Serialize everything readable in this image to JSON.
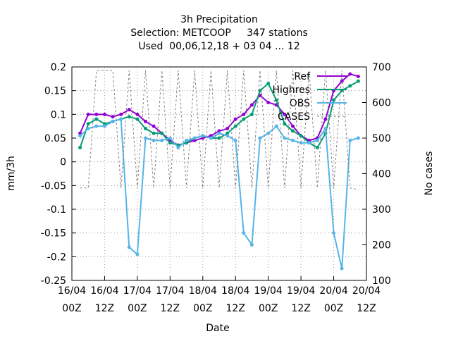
{
  "chart_data": {
    "type": "line",
    "title": [
      "3h Precipitation",
      "Selection: METCOOP     347 stations",
      "Used  00,06,12,18 + 03 04 ... 12"
    ],
    "xlabel": "Date",
    "ylabel": "mm/3h",
    "y2label": "No cases",
    "x": [
      3,
      6,
      9,
      12,
      15,
      18,
      21,
      24,
      27,
      30,
      33,
      36,
      39,
      42,
      45,
      48,
      51,
      54,
      57,
      60,
      63,
      66,
      69,
      72,
      75,
      78,
      81,
      84,
      87,
      90,
      93,
      96,
      99,
      102,
      105
    ],
    "xlim": [
      0,
      108
    ],
    "xticks": [
      {
        "value": 0,
        "label": [
          "16/04",
          "00Z"
        ]
      },
      {
        "value": 12,
        "label": [
          "16/04",
          "12Z"
        ]
      },
      {
        "value": 24,
        "label": [
          "17/04",
          "00Z"
        ]
      },
      {
        "value": 36,
        "label": [
          "17/04",
          "12Z"
        ]
      },
      {
        "value": 48,
        "label": [
          "18/04",
          "00Z"
        ]
      },
      {
        "value": 60,
        "label": [
          "18/04",
          "12Z"
        ]
      },
      {
        "value": 72,
        "label": [
          "19/04",
          "00Z"
        ]
      },
      {
        "value": 84,
        "label": [
          "19/04",
          "12Z"
        ]
      },
      {
        "value": 96,
        "label": [
          "20/04",
          "00Z"
        ]
      },
      {
        "value": 108,
        "label": [
          "20/04",
          "12Z"
        ]
      }
    ],
    "ylim": [
      -0.25,
      0.2
    ],
    "yticks": [
      -0.25,
      -0.2,
      -0.15,
      -0.1,
      -0.05,
      0,
      0.05,
      0.1,
      0.15,
      0.2
    ],
    "y2lim": [
      100,
      700
    ],
    "y2ticks": [
      100,
      200,
      300,
      400,
      500,
      600,
      700
    ],
    "grid": true,
    "legend": "top right",
    "series": [
      {
        "name": "Ref",
        "color": "#9400d3",
        "values": [
          0.06,
          0.1,
          0.1,
          0.1,
          0.095,
          0.1,
          0.11,
          0.1,
          0.085,
          0.075,
          0.06,
          0.045,
          0.035,
          0.04,
          0.045,
          0.05,
          0.055,
          0.065,
          0.07,
          0.09,
          0.1,
          0.12,
          0.14,
          0.125,
          0.12,
          0.1,
          0.075,
          0.055,
          0.045,
          0.05,
          0.09,
          0.15,
          0.17,
          0.185,
          0.18
        ]
      },
      {
        "name": "Highres",
        "color": "#009e73",
        "values": [
          0.03,
          0.08,
          0.09,
          0.08,
          0.085,
          0.09,
          0.095,
          0.09,
          0.07,
          0.06,
          0.06,
          0.04,
          0.035,
          0.04,
          0.05,
          0.055,
          0.05,
          0.05,
          0.06,
          0.075,
          0.09,
          0.1,
          0.15,
          0.165,
          0.13,
          0.08,
          0.065,
          0.055,
          0.04,
          0.03,
          0.06,
          0.13,
          0.15,
          0.16,
          0.17
        ]
      },
      {
        "name": "OBS",
        "color": "#56b4e9",
        "values": [
          0.055,
          0.07,
          0.075,
          0.075,
          0.085,
          0.09,
          -0.18,
          -0.195,
          0.05,
          0.045,
          0.045,
          0.05,
          0.03,
          0.045,
          0.05,
          0.055,
          0.05,
          0.06,
          0.055,
          0.045,
          -0.15,
          -0.175,
          0.05,
          0.06,
          0.075,
          0.05,
          0.045,
          0.04,
          0.04,
          0.045,
          0.07,
          -0.15,
          -0.225,
          0.045,
          0.05
        ]
      },
      {
        "name": "CASES",
        "color": "#808080",
        "axis": "y2",
        "dashed": true,
        "values": [
          360,
          360,
          690,
          690,
          690,
          360,
          690,
          360,
          690,
          360,
          690,
          360,
          690,
          360,
          690,
          360,
          690,
          360,
          690,
          360,
          690,
          360,
          690,
          360,
          690,
          360,
          690,
          360,
          690,
          360,
          690,
          360,
          690,
          360,
          355
        ]
      }
    ]
  }
}
